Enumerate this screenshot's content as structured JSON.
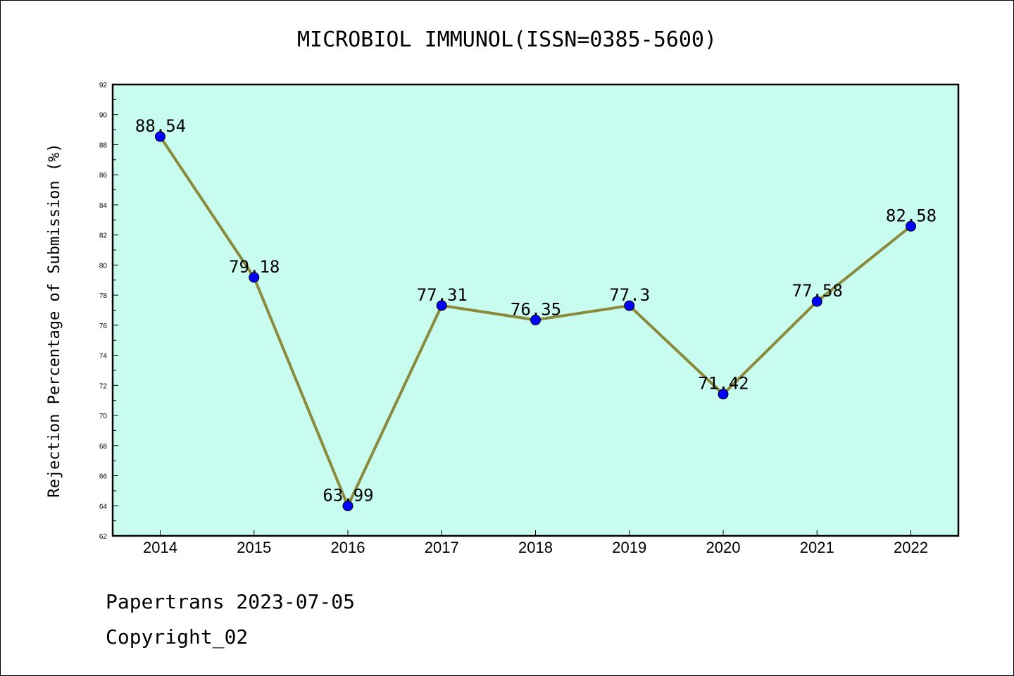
{
  "chart_data": {
    "type": "line",
    "title": "MICROBIOL IMMUNOL(ISSN=0385-5600)",
    "xlabel": "",
    "ylabel": "Rejection Percentage of Submission (%)",
    "categories": [
      "2014",
      "2015",
      "2016",
      "2017",
      "2018",
      "2019",
      "2020",
      "2021",
      "2022"
    ],
    "series": [
      {
        "values": [
          88.54,
          79.18,
          63.99,
          77.31,
          76.35,
          77.3,
          71.42,
          77.58,
          82.58
        ],
        "labels": [
          "88.54",
          "79.18",
          "63.99",
          "77.31",
          "76.35",
          "77.3",
          "71.42",
          "77.58",
          "82.58"
        ]
      }
    ],
    "ylim": [
      62,
      92
    ],
    "yticks": [
      62,
      64,
      66,
      68,
      70,
      72,
      74,
      76,
      78,
      80,
      82,
      84,
      86,
      88,
      90,
      92
    ],
    "grid": false,
    "colors": {
      "plot_background": "#c8fcee",
      "line": "#8b8a3c",
      "marker": "#0000ff"
    }
  },
  "footer": {
    "line1": "Papertrans 2023-07-05",
    "line2": "Copyright_02"
  }
}
